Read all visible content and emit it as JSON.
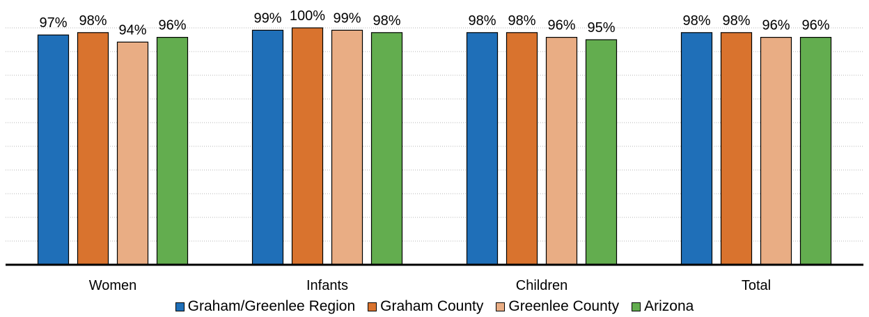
{
  "chart_data": {
    "type": "bar",
    "title": "",
    "xlabel": "",
    "ylabel": "",
    "ylim": [
      0,
      100
    ],
    "grid": true,
    "legend_position": "bottom",
    "categories": [
      "Women",
      "Infants",
      "Children",
      "Total"
    ],
    "series": [
      {
        "name": "Graham/Greenlee Region",
        "color": "#1f6fb8",
        "values": [
          97,
          99,
          98,
          98
        ],
        "labels": [
          "97%",
          "99%",
          "98%",
          "98%"
        ]
      },
      {
        "name": "Graham County",
        "color": "#d9732e",
        "values": [
          98,
          100,
          98,
          98
        ],
        "labels": [
          "98%",
          "100%",
          "98%",
          "98%"
        ]
      },
      {
        "name": "Greenlee County",
        "color": "#e9ad84",
        "values": [
          94,
          99,
          96,
          96
        ],
        "labels": [
          "94%",
          "99%",
          "96%",
          "96%"
        ]
      },
      {
        "name": "Arizona",
        "color": "#63ad4f",
        "values": [
          96,
          98,
          95,
          96
        ],
        "labels": [
          "96%",
          "98%",
          "95%",
          "96%"
        ]
      }
    ]
  }
}
